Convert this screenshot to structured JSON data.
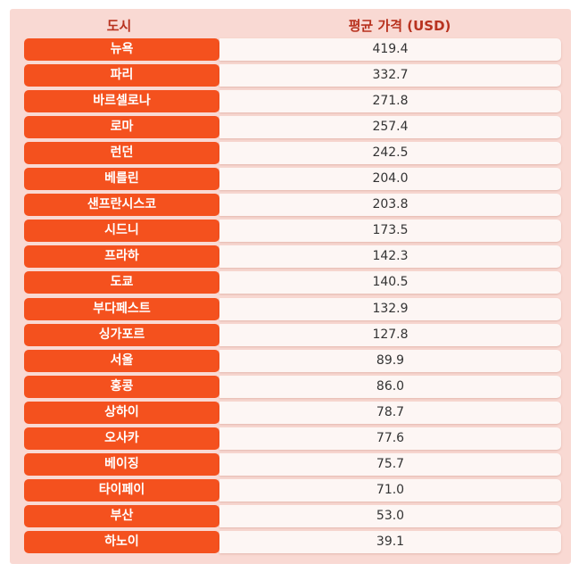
{
  "chart_data": {
    "type": "table",
    "columns": [
      "도시",
      "평균 가격 (USD)"
    ],
    "rows": [
      {
        "city": "뉴욕",
        "value": "419.4"
      },
      {
        "city": "파리",
        "value": "332.7"
      },
      {
        "city": "바르셀로나",
        "value": "271.8"
      },
      {
        "city": "로마",
        "value": "257.4"
      },
      {
        "city": "런던",
        "value": "242.5"
      },
      {
        "city": "베를린",
        "value": "204.0"
      },
      {
        "city": "샌프란시스코",
        "value": "203.8"
      },
      {
        "city": "시드니",
        "value": "173.5"
      },
      {
        "city": "프라하",
        "value": "142.3"
      },
      {
        "city": "도쿄",
        "value": "140.5"
      },
      {
        "city": "부다페스트",
        "value": "132.9"
      },
      {
        "city": "싱가포르",
        "value": "127.8"
      },
      {
        "city": "서울",
        "value": "89.9"
      },
      {
        "city": "홍콩",
        "value": "86.0"
      },
      {
        "city": "상하이",
        "value": "78.7"
      },
      {
        "city": "오사카",
        "value": "77.6"
      },
      {
        "city": "베이징",
        "value": "75.7"
      },
      {
        "city": "타이페이",
        "value": "71.0"
      },
      {
        "city": "부산",
        "value": "53.0"
      },
      {
        "city": "하노이",
        "value": "39.1"
      }
    ]
  },
  "colors": {
    "panel_bg": "#f9d9d3",
    "header_text": "#b8321f",
    "city_cell": "#f4511e",
    "value_cell": "#fdf6f4"
  }
}
